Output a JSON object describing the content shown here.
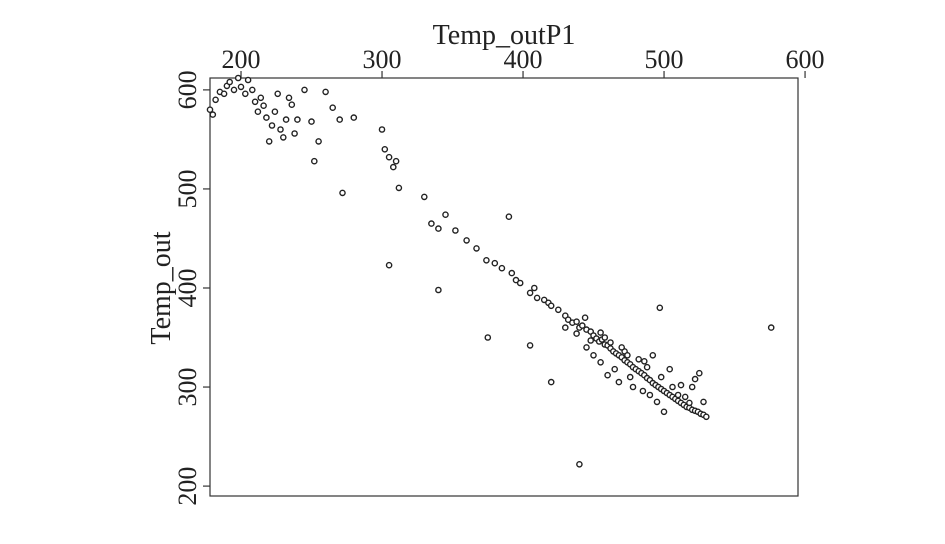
{
  "chart_data": {
    "type": "scatter",
    "title": "",
    "xlabel": "Temp_outP1",
    "ylabel": "Temp_out",
    "xlim": [
      178,
      595
    ],
    "ylim": [
      190,
      612
    ],
    "xticks": [
      200,
      300,
      400,
      500,
      600
    ],
    "yticks": [
      200,
      300,
      400,
      500,
      600
    ],
    "x_axis_position": "top",
    "grid": false,
    "marker": "hollow-circle",
    "series": [
      {
        "points": [
          [
            178,
            580
          ],
          [
            180,
            575
          ],
          [
            182,
            590
          ],
          [
            185,
            598
          ],
          [
            188,
            596
          ],
          [
            190,
            604
          ],
          [
            192,
            608
          ],
          [
            195,
            600
          ],
          [
            198,
            612
          ],
          [
            200,
            603
          ],
          [
            203,
            596
          ],
          [
            205,
            610
          ],
          [
            208,
            600
          ],
          [
            210,
            588
          ],
          [
            212,
            578
          ],
          [
            214,
            592
          ],
          [
            216,
            584
          ],
          [
            218,
            572
          ],
          [
            220,
            548
          ],
          [
            222,
            564
          ],
          [
            224,
            578
          ],
          [
            226,
            596
          ],
          [
            228,
            560
          ],
          [
            230,
            552
          ],
          [
            232,
            570
          ],
          [
            234,
            592
          ],
          [
            236,
            585
          ],
          [
            238,
            556
          ],
          [
            240,
            570
          ],
          [
            245,
            600
          ],
          [
            250,
            568
          ],
          [
            252,
            528
          ],
          [
            255,
            548
          ],
          [
            260,
            598
          ],
          [
            265,
            582
          ],
          [
            270,
            570
          ],
          [
            272,
            496
          ],
          [
            280,
            572
          ],
          [
            300,
            560
          ],
          [
            302,
            540
          ],
          [
            305,
            532
          ],
          [
            308,
            522
          ],
          [
            310,
            528
          ],
          [
            312,
            501
          ],
          [
            305,
            423
          ],
          [
            340,
            398
          ],
          [
            330,
            492
          ],
          [
            335,
            465
          ],
          [
            340,
            460
          ],
          [
            345,
            474
          ],
          [
            352,
            458
          ],
          [
            360,
            448
          ],
          [
            367,
            440
          ],
          [
            374,
            428
          ],
          [
            380,
            425
          ],
          [
            385,
            420
          ],
          [
            390,
            472
          ],
          [
            392,
            415
          ],
          [
            395,
            408
          ],
          [
            398,
            405
          ],
          [
            405,
            395
          ],
          [
            408,
            400
          ],
          [
            410,
            390
          ],
          [
            415,
            388
          ],
          [
            418,
            385
          ],
          [
            420,
            382
          ],
          [
            425,
            378
          ],
          [
            405,
            342
          ],
          [
            375,
            350
          ],
          [
            420,
            305
          ],
          [
            440,
            222
          ],
          [
            430,
            372
          ],
          [
            432,
            368
          ],
          [
            435,
            365
          ],
          [
            438,
            366
          ],
          [
            440,
            360
          ],
          [
            442,
            362
          ],
          [
            445,
            358
          ],
          [
            448,
            356
          ],
          [
            450,
            352
          ],
          [
            452,
            349
          ],
          [
            454,
            346
          ],
          [
            456,
            348
          ],
          [
            458,
            343
          ],
          [
            460,
            342
          ],
          [
            462,
            339
          ],
          [
            464,
            336
          ],
          [
            466,
            334
          ],
          [
            468,
            332
          ],
          [
            470,
            330
          ],
          [
            472,
            327
          ],
          [
            474,
            325
          ],
          [
            476,
            323
          ],
          [
            478,
            320
          ],
          [
            480,
            318
          ],
          [
            482,
            316
          ],
          [
            484,
            314
          ],
          [
            486,
            312
          ],
          [
            488,
            309
          ],
          [
            490,
            307
          ],
          [
            492,
            304
          ],
          [
            494,
            302
          ],
          [
            496,
            300
          ],
          [
            498,
            298
          ],
          [
            500,
            296
          ],
          [
            502,
            294
          ],
          [
            504,
            292
          ],
          [
            506,
            290
          ],
          [
            508,
            288
          ],
          [
            510,
            286
          ],
          [
            512,
            284
          ],
          [
            514,
            282
          ],
          [
            516,
            280
          ],
          [
            518,
            279
          ],
          [
            520,
            277
          ],
          [
            522,
            276
          ],
          [
            524,
            275
          ],
          [
            526,
            273
          ],
          [
            528,
            272
          ],
          [
            530,
            270
          ],
          [
            445,
            340
          ],
          [
            450,
            332
          ],
          [
            455,
            325
          ],
          [
            460,
            312
          ],
          [
            465,
            318
          ],
          [
            468,
            305
          ],
          [
            472,
            336
          ],
          [
            476,
            310
          ],
          [
            478,
            300
          ],
          [
            482,
            328
          ],
          [
            485,
            296
          ],
          [
            488,
            320
          ],
          [
            490,
            292
          ],
          [
            492,
            332
          ],
          [
            495,
            285
          ],
          [
            497,
            380
          ],
          [
            498,
            310
          ],
          [
            500,
            275
          ],
          [
            504,
            318
          ],
          [
            506,
            300
          ],
          [
            510,
            292
          ],
          [
            512,
            302
          ],
          [
            515,
            290
          ],
          [
            518,
            284
          ],
          [
            520,
            300
          ],
          [
            522,
            308
          ],
          [
            525,
            314
          ],
          [
            528,
            285
          ],
          [
            455,
            355
          ],
          [
            448,
            347
          ],
          [
            462,
            345
          ],
          [
            474,
            332
          ],
          [
            486,
            326
          ],
          [
            430,
            360
          ],
          [
            438,
            354
          ],
          [
            444,
            370
          ],
          [
            576,
            360
          ],
          [
            470,
            340
          ],
          [
            458,
            350
          ]
        ]
      }
    ]
  }
}
